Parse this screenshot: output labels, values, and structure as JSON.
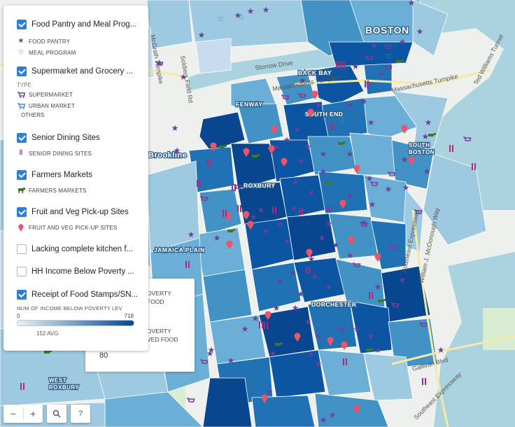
{
  "map": {
    "places": [
      {
        "name": "boston-label",
        "text": "BOSTON"
      },
      {
        "name": "back-bay-label",
        "text": "BACK BAY"
      },
      {
        "name": "fenway-label",
        "text": "FENWAY"
      },
      {
        "name": "south-end-label",
        "text": "SOUTH END"
      },
      {
        "name": "south-boston-label",
        "text": "SOUTH\nBOSTON"
      },
      {
        "name": "brookline-label",
        "text": "Brookline"
      },
      {
        "name": "roxbury-label",
        "text": "ROXBURY"
      },
      {
        "name": "jamaica-plain-label",
        "text": "JAMAICA PLAIN"
      },
      {
        "name": "dorchester-label",
        "text": "DORCHESTER"
      },
      {
        "name": "west-roxbury-label",
        "text": "WEST\nROXBURY"
      }
    ],
    "roads": [
      "Storrow Drive",
      "Massachusetts Turnpike",
      "Massachusetts Turnpike",
      "Ted Williams Tunnel",
      "Southeast Expressway",
      "William J. McDonough Way",
      "Gallivan Blvd",
      "Southeast Expressway",
      "Soldiers Field Rd",
      "McGrath Turnpike"
    ]
  },
  "legend": {
    "food_pantry": {
      "title": "Food Pantry and Meal Prog...",
      "items": [
        {
          "symbol": "star-filled",
          "label": "FOOD PANTRY"
        },
        {
          "symbol": "star-outline",
          "label": "MEAL PROGRAM"
        }
      ]
    },
    "supermarket": {
      "title": "Supermarket and Grocery ...",
      "type_label": "TYPE",
      "items": [
        {
          "symbol": "cart-icon",
          "label": "SUPERMARKET"
        },
        {
          "symbol": "cart-icon",
          "label": "URBAN MARKET"
        }
      ],
      "others_label": "OTHERS"
    },
    "senior": {
      "title": "Senior Dining Sites",
      "items": [
        {
          "symbol": "utensils-icon",
          "label": "SENIOR DINING SITES"
        }
      ]
    },
    "farmers": {
      "title": "Farmers Markets",
      "items": [
        {
          "symbol": "cow-icon",
          "label": "FARMERS MARKETS"
        }
      ]
    },
    "fruit": {
      "title": "Fruit and Veg Pick-up Sites",
      "items": [
        {
          "symbol": "pin-icon",
          "label": "FRUIT AND VEG PICK-UP SITES"
        }
      ]
    },
    "kitchen": {
      "title": "Lacking complete kitchen f..."
    },
    "poverty": {
      "title": "HH Income Below Poverty ..."
    },
    "stamps": {
      "title": "Receipt of Food Stamps/SN...",
      "ramp_title": "NUM OF INCOME BELOW POVERTY LEV",
      "min": "0",
      "max": "718",
      "avg": "152 AVG"
    }
  },
  "popup": {
    "line1": "OVERTY",
    "line2": "FOOD",
    "line3": "OVERTY",
    "line4": "VED FOOD",
    "value": "80"
  },
  "controls": {
    "zoom_out": "−",
    "zoom_in": "+",
    "search": "search-icon",
    "help": "?"
  },
  "colors": {
    "choropleth": [
      "#c7dcef",
      "#9ecae1",
      "#6baed6",
      "#4292c6",
      "#2171b5",
      "#0b55a3",
      "#08468f"
    ],
    "star": "#6a3f9e",
    "cart": "#7d3c98",
    "utensils": "#b02a7c",
    "cow": "#3f7a2a",
    "pin": "#e8546a",
    "accent": "#2b7fd8"
  }
}
